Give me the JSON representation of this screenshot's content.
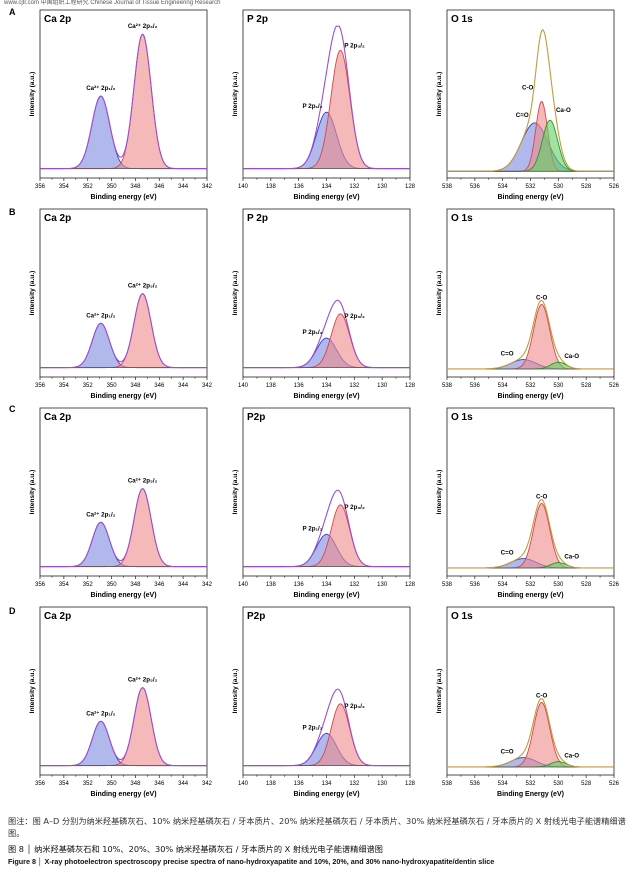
{
  "header_text": "www.cjtr.com  中国组织工程研究  Chinese Journal of Tissue Engineering Research",
  "caption": {
    "note": "图注：图 A–D 分别为纳米羟基磷灰石、10% 纳米羟基磷灰石 / 牙本质片、20% 纳米羟基磷灰石 / 牙本质片、30% 纳米羟基磷灰石 / 牙本质片的 X 射线光电子能谱精细谱图。",
    "title_cn": "图 8 │ 纳米羟基磷灰石和 10%、20%、30% 纳米羟基磷灰石 / 牙本质片的 X 射线光电子能谱精细谱图",
    "title_en": "Figure 8 │ X-ray photoelectron spectroscopy precise spectra of nano-hydroxyapatite and 10%, 20%, and 30% nano-hydroxyapatite/dentin slice"
  },
  "colors": {
    "ca_low": "#7c88e0",
    "ca_high": "#ef8a8a",
    "envelope": "#9b4fd0",
    "p_high": "#ef8a8a",
    "p_low": "#7c88e0",
    "o_co": "#ef8a8a",
    "o_c_o": "#7c88e0",
    "o_ca_o": "#61d061",
    "o_envelope": "#c49a3c",
    "background": "#555555"
  },
  "chart_data": [
    {
      "type": "area",
      "panel": "A",
      "title": "Ca 2p",
      "xlabel": "Binding energy (eV)",
      "ylabel": "Intensity (a.u.)",
      "xlim": [
        356,
        342
      ],
      "ticks": [
        356,
        354,
        352,
        350,
        348,
        346,
        344,
        342
      ],
      "series": [
        {
          "name": "Ca²⁺ 2p₁/₂",
          "center": 350.9,
          "width": 0.75,
          "height": 0.54,
          "color": "#7c88e0"
        },
        {
          "name": "Ca²⁺ 2p₃/₂",
          "center": 347.4,
          "width": 0.72,
          "height": 1.0,
          "color": "#ef8a8a"
        }
      ],
      "envelope": true,
      "baseline": 0.04
    },
    {
      "type": "area",
      "panel": "A",
      "title": "P 2p",
      "xlabel": "Binding energy (eV)",
      "ylabel": "Intensity (a.u.)",
      "xlim": [
        140,
        128
      ],
      "ticks": [
        140,
        138,
        136,
        134,
        132,
        130,
        128
      ],
      "series": [
        {
          "name": "P 2p₁/₂",
          "center": 134.0,
          "width": 0.72,
          "height": 0.42,
          "color": "#7c88e0"
        },
        {
          "name": "P 2p₃/₂",
          "center": 133.0,
          "width": 0.68,
          "height": 0.88,
          "color": "#ef8a8a"
        }
      ],
      "envelope": true,
      "baseline": 0.04
    },
    {
      "type": "area",
      "panel": "A",
      "title": "O 1s",
      "xlabel": "Binding energy (eV)",
      "ylabel": "Intensity (a.u.)",
      "xlim": [
        538,
        526
      ],
      "ticks": [
        538,
        536,
        534,
        532,
        530,
        528,
        526
      ],
      "series": [
        {
          "name": "C=O",
          "center": 531.7,
          "width": 0.95,
          "height": 0.36,
          "color": "#7c88e0"
        },
        {
          "name": "C-O",
          "center": 531.2,
          "width": 0.42,
          "height": 0.52,
          "color": "#ef8a8a"
        },
        {
          "name": "Ca-O",
          "center": 530.6,
          "width": 0.55,
          "height": 0.38,
          "color": "#61d061"
        }
      ],
      "envelope": true,
      "baseline": 0.02
    },
    {
      "type": "area",
      "panel": "B",
      "title": "Ca 2p",
      "xlabel": "Binding energy (eV)",
      "ylabel": "Intensity (a.u.)",
      "xlim": [
        356,
        342
      ],
      "ticks": [
        356,
        354,
        352,
        350,
        348,
        346,
        344,
        342
      ],
      "series": [
        {
          "name": "Ca²⁺ 2p₁/₂",
          "center": 350.9,
          "width": 0.72,
          "height": 0.33,
          "color": "#7c88e0"
        },
        {
          "name": "Ca²⁺ 2p₃/₂",
          "center": 347.4,
          "width": 0.72,
          "height": 0.55,
          "color": "#ef8a8a"
        }
      ],
      "envelope": true,
      "baseline": 0.04
    },
    {
      "type": "area",
      "panel": "B",
      "title": "P 2p",
      "xlabel": "Binding energy (eV)",
      "ylabel": "Intensity (a.u.)",
      "xlim": [
        140,
        128
      ],
      "ticks": [
        140,
        138,
        136,
        134,
        132,
        130,
        128
      ],
      "series": [
        {
          "name": "P 2p₁/₂",
          "center": 134.0,
          "width": 0.72,
          "height": 0.22,
          "color": "#7c88e0"
        },
        {
          "name": "P 2p₃/₂",
          "center": 133.0,
          "width": 0.66,
          "height": 0.4,
          "color": "#ef8a8a"
        }
      ],
      "envelope": true,
      "baseline": 0.04
    },
    {
      "type": "area",
      "panel": "B",
      "title": "O 1s",
      "xlabel": "Binding energy (eV)",
      "ylabel": "Intensity (a.u.)",
      "xlim": [
        538,
        526
      ],
      "ticks": [
        538,
        536,
        534,
        532,
        530,
        528,
        526
      ],
      "series": [
        {
          "name": "C=O",
          "center": 532.5,
          "width": 0.9,
          "height": 0.07,
          "color": "#7c88e0"
        },
        {
          "name": "C-O",
          "center": 531.2,
          "width": 0.58,
          "height": 0.48,
          "color": "#ef8a8a"
        },
        {
          "name": "Ca-O",
          "center": 530.0,
          "width": 0.55,
          "height": 0.05,
          "color": "#61d061"
        }
      ],
      "envelope": true,
      "baseline": 0.03
    },
    {
      "type": "area",
      "panel": "C",
      "title": "Ca 2p",
      "xlabel": "Binding energy (eV)",
      "ylabel": "Intensity (a.u.)",
      "xlim": [
        356,
        342
      ],
      "ticks": [
        356,
        354,
        352,
        350,
        348,
        346,
        344,
        342
      ],
      "series": [
        {
          "name": "Ca²⁺ 2p₁/₂",
          "center": 350.9,
          "width": 0.72,
          "height": 0.33,
          "color": "#7c88e0"
        },
        {
          "name": "Ca²⁺ 2p₃/₂",
          "center": 347.4,
          "width": 0.72,
          "height": 0.58,
          "color": "#ef8a8a"
        }
      ],
      "envelope": true,
      "baseline": 0.04
    },
    {
      "type": "area",
      "panel": "C",
      "title": "P2p",
      "xlabel": "Binding energy (eV)",
      "ylabel": "Intensity (a.u.)",
      "xlim": [
        140,
        128
      ],
      "ticks": [
        140,
        138,
        136,
        134,
        132,
        130,
        128
      ],
      "series": [
        {
          "name": "P 2p₁/₂",
          "center": 134.0,
          "width": 0.72,
          "height": 0.24,
          "color": "#7c88e0"
        },
        {
          "name": "P 2p₃/₂",
          "center": 133.0,
          "width": 0.66,
          "height": 0.46,
          "color": "#ef8a8a"
        }
      ],
      "envelope": true,
      "baseline": 0.04
    },
    {
      "type": "area",
      "panel": "C",
      "title": "O 1s",
      "xlabel": "Binding energy (eV)",
      "ylabel": "Intensity (a.u.)",
      "xlim": [
        538,
        526
      ],
      "ticks": [
        538,
        536,
        534,
        532,
        530,
        528,
        526
      ],
      "series": [
        {
          "name": "C=O",
          "center": 532.5,
          "width": 0.9,
          "height": 0.07,
          "color": "#7c88e0"
        },
        {
          "name": "C-O",
          "center": 531.2,
          "width": 0.58,
          "height": 0.48,
          "color": "#ef8a8a"
        },
        {
          "name": "Ca-O",
          "center": 530.0,
          "width": 0.55,
          "height": 0.04,
          "color": "#61d061"
        }
      ],
      "envelope": true,
      "baseline": 0.03
    },
    {
      "type": "area",
      "panel": "D",
      "title": "Ca 2p",
      "xlabel": "Binding energy (eV)",
      "ylabel": "Intensity (a.u.)",
      "xlim": [
        356,
        342
      ],
      "ticks": [
        356,
        354,
        352,
        350,
        348,
        346,
        344,
        342
      ],
      "series": [
        {
          "name": "Ca²⁺ 2p₁/₂",
          "center": 350.9,
          "width": 0.72,
          "height": 0.33,
          "color": "#7c88e0"
        },
        {
          "name": "Ca²⁺ 2p₃/₂",
          "center": 347.4,
          "width": 0.72,
          "height": 0.58,
          "color": "#ef8a8a"
        }
      ],
      "envelope": true,
      "baseline": 0.04
    },
    {
      "type": "area",
      "panel": "D",
      "title": "P2p",
      "xlabel": "Binding energy (eV)",
      "ylabel": "Intensity (a.u.)",
      "xlim": [
        140,
        128
      ],
      "ticks": [
        140,
        138,
        136,
        134,
        132,
        130,
        128
      ],
      "series": [
        {
          "name": "P 2p₁/₂",
          "center": 134.0,
          "width": 0.72,
          "height": 0.24,
          "color": "#7c88e0"
        },
        {
          "name": "P 2p₃/₂",
          "center": 133.0,
          "width": 0.66,
          "height": 0.46,
          "color": "#ef8a8a"
        }
      ],
      "envelope": true,
      "baseline": 0.04
    },
    {
      "type": "area",
      "panel": "D",
      "title": "O 1s",
      "xlabel": "Binding Energy (eV)",
      "ylabel": "Intensity (a.u.)",
      "xlim": [
        538,
        526
      ],
      "ticks": [
        538,
        536,
        534,
        532,
        530,
        528,
        526
      ],
      "series": [
        {
          "name": "C=O",
          "center": 532.5,
          "width": 0.9,
          "height": 0.07,
          "color": "#7c88e0"
        },
        {
          "name": "C-O",
          "center": 531.2,
          "width": 0.58,
          "height": 0.48,
          "color": "#ef8a8a"
        },
        {
          "name": "Ca-O",
          "center": 530.0,
          "width": 0.55,
          "height": 0.04,
          "color": "#61d061"
        }
      ],
      "envelope": true,
      "baseline": 0.03
    }
  ]
}
